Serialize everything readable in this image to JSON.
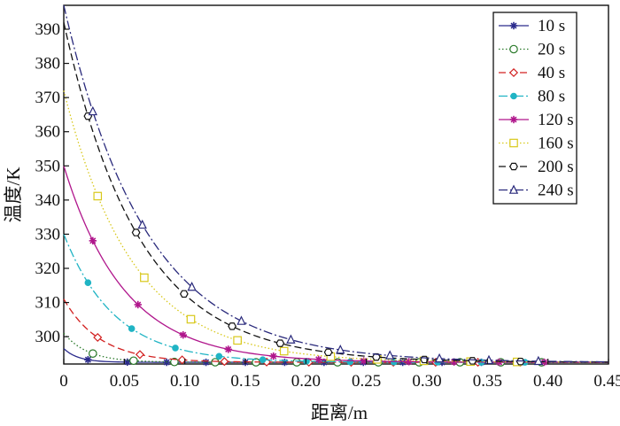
{
  "chart_data": {
    "type": "line",
    "xlabel": "距离/m",
    "ylabel": "温度/K",
    "xlim": [
      0,
      0.45
    ],
    "ylim": [
      292,
      397
    ],
    "x_ticks": [
      "0",
      "0.05",
      "0.10",
      "0.15",
      "0.20",
      "0.25",
      "0.30",
      "0.35",
      "0.40",
      "0.45"
    ],
    "y_ticks": [
      "300",
      "310",
      "320",
      "330",
      "340",
      "350",
      "360",
      "370",
      "380",
      "390"
    ],
    "legend_position": "top-right",
    "grid": false,
    "series": [
      {
        "name": "10 s",
        "color": "#2b2b8c",
        "dash": "",
        "marker": "star",
        "T0": 296.5,
        "decay": 0.012
      },
      {
        "name": "20 s",
        "color": "#2a7a2a",
        "dash": "1.5,2.5",
        "marker": "circle",
        "T0": 301.0,
        "decay": 0.02
      },
      {
        "name": "40 s",
        "color": "#d22020",
        "dash": "8,4",
        "marker": "diamond",
        "T0": 311.0,
        "decay": 0.03
      },
      {
        "name": "80 s",
        "color": "#20b4c4",
        "dash": "10,3,2,3",
        "marker": "dot",
        "T0": 330.0,
        "decay": 0.042
      },
      {
        "name": "120 s",
        "color": "#b0168c",
        "dash": "",
        "marker": "star",
        "T0": 350.0,
        "decay": 0.05
      },
      {
        "name": "160 s",
        "color": "#d8c81a",
        "dash": "1.5,2.5",
        "marker": "square",
        "T0": 372.0,
        "decay": 0.057
      },
      {
        "name": "200 s",
        "color": "#111111",
        "dash": "8,4",
        "marker": "hexagon",
        "T0": 392.0,
        "decay": 0.062
      },
      {
        "name": "240 s",
        "color": "#2a2a7c",
        "dash": "10,3,2,3",
        "marker": "triangle",
        "T0": 397.0,
        "decay": 0.068
      }
    ],
    "baseline": 292.5
  }
}
